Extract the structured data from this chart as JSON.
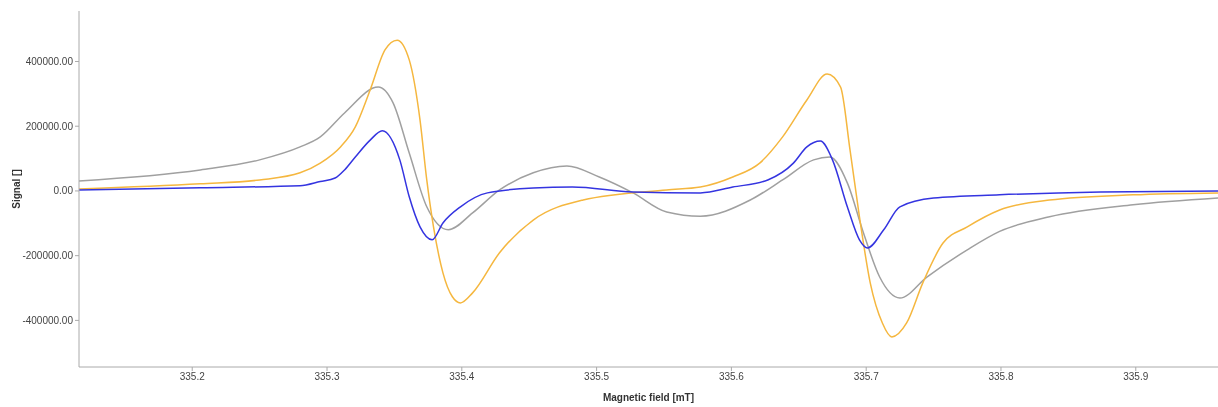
{
  "chart_data": {
    "type": "line",
    "xlabel": "Magnetic field [mT]",
    "ylabel": "Signal []",
    "xlim": [
      335.116,
      335.961
    ],
    "ylim": [
      -544000,
      556000
    ],
    "xticks": [
      335.2,
      335.3,
      335.4,
      335.5,
      335.6,
      335.7,
      335.8,
      335.9
    ],
    "yticks": [
      {
        "value": -400000,
        "label": "-400000.00"
      },
      {
        "value": -200000,
        "label": "-200000.00"
      },
      {
        "value": 0,
        "label": "0.00"
      },
      {
        "value": 200000,
        "label": "200000.00"
      },
      {
        "value": 400000,
        "label": "400000.00"
      }
    ],
    "series": [
      {
        "color": "#a0a0a0",
        "x": [
          335.116,
          335.206,
          335.25,
          335.28,
          335.295,
          335.313,
          335.338,
          335.349,
          335.361,
          335.374,
          335.39,
          335.408,
          335.428,
          335.453,
          335.478,
          335.502,
          335.527,
          335.552,
          335.577,
          335.614,
          335.638,
          335.661,
          335.673,
          335.686,
          335.698,
          335.71,
          335.725,
          335.745,
          335.775,
          335.799,
          335.836,
          335.898,
          335.961
        ],
        "values": [
          31000,
          65000,
          96000,
          136000,
          167000,
          241000,
          321000,
          272000,
          117000,
          -49000,
          -120000,
          -68000,
          3000,
          56000,
          77000,
          43000,
          -6000,
          -65000,
          -78000,
          -28000,
          34000,
          96000,
          105000,
          25000,
          -130000,
          -266000,
          -331000,
          -266000,
          -182000,
          -125000,
          -80000,
          -43000,
          -22000
        ]
      },
      {
        "color": "#f5b73f",
        "x": [
          335.116,
          335.206,
          335.25,
          335.28,
          335.295,
          335.31,
          335.321,
          335.332,
          335.343,
          335.352,
          335.361,
          335.369,
          335.374,
          335.379,
          335.386,
          335.393,
          335.399,
          335.408,
          335.428,
          335.453,
          335.49,
          335.552,
          335.577,
          335.601,
          335.621,
          335.638,
          335.656,
          335.671,
          335.681,
          335.688,
          335.695,
          335.703,
          335.712,
          335.719,
          335.73,
          335.742,
          335.757,
          335.775,
          335.799,
          335.836,
          335.898,
          335.961
        ],
        "values": [
          6000,
          22000,
          34000,
          56000,
          86000,
          136000,
          198000,
          312000,
          436000,
          466000,
          405000,
          219000,
          34000,
          -111000,
          -253000,
          -327000,
          -346000,
          -315000,
          -191000,
          -90000,
          -28000,
          3000,
          12000,
          43000,
          86000,
          167000,
          281000,
          361000,
          321000,
          127000,
          -80000,
          -284000,
          -408000,
          -451000,
          -408000,
          -284000,
          -161000,
          -111000,
          -59000,
          -28000,
          -12000,
          -6000
        ]
      },
      {
        "color": "#3434e0",
        "x": [
          335.116,
          335.206,
          335.28,
          335.295,
          335.306,
          335.313,
          335.321,
          335.332,
          335.341,
          335.354,
          335.361,
          335.369,
          335.378,
          335.386,
          335.399,
          335.419,
          335.453,
          335.482,
          335.527,
          335.577,
          335.601,
          335.627,
          335.646,
          335.656,
          335.666,
          335.675,
          335.686,
          335.695,
          335.701,
          335.713,
          335.725,
          335.75,
          335.799,
          335.874,
          335.961
        ],
        "values": [
          3000,
          10000,
          16000,
          29000,
          40000,
          65000,
          105000,
          157000,
          186000,
          96000,
          -18000,
          -111000,
          -151000,
          -99000,
          -49000,
          -6000,
          9000,
          12000,
          -3000,
          -6000,
          12000,
          34000,
          86000,
          136000,
          154000,
          96000,
          -49000,
          -151000,
          -176000,
          -120000,
          -49000,
          -22000,
          -12000,
          -3000,
          0
        ]
      }
    ]
  }
}
